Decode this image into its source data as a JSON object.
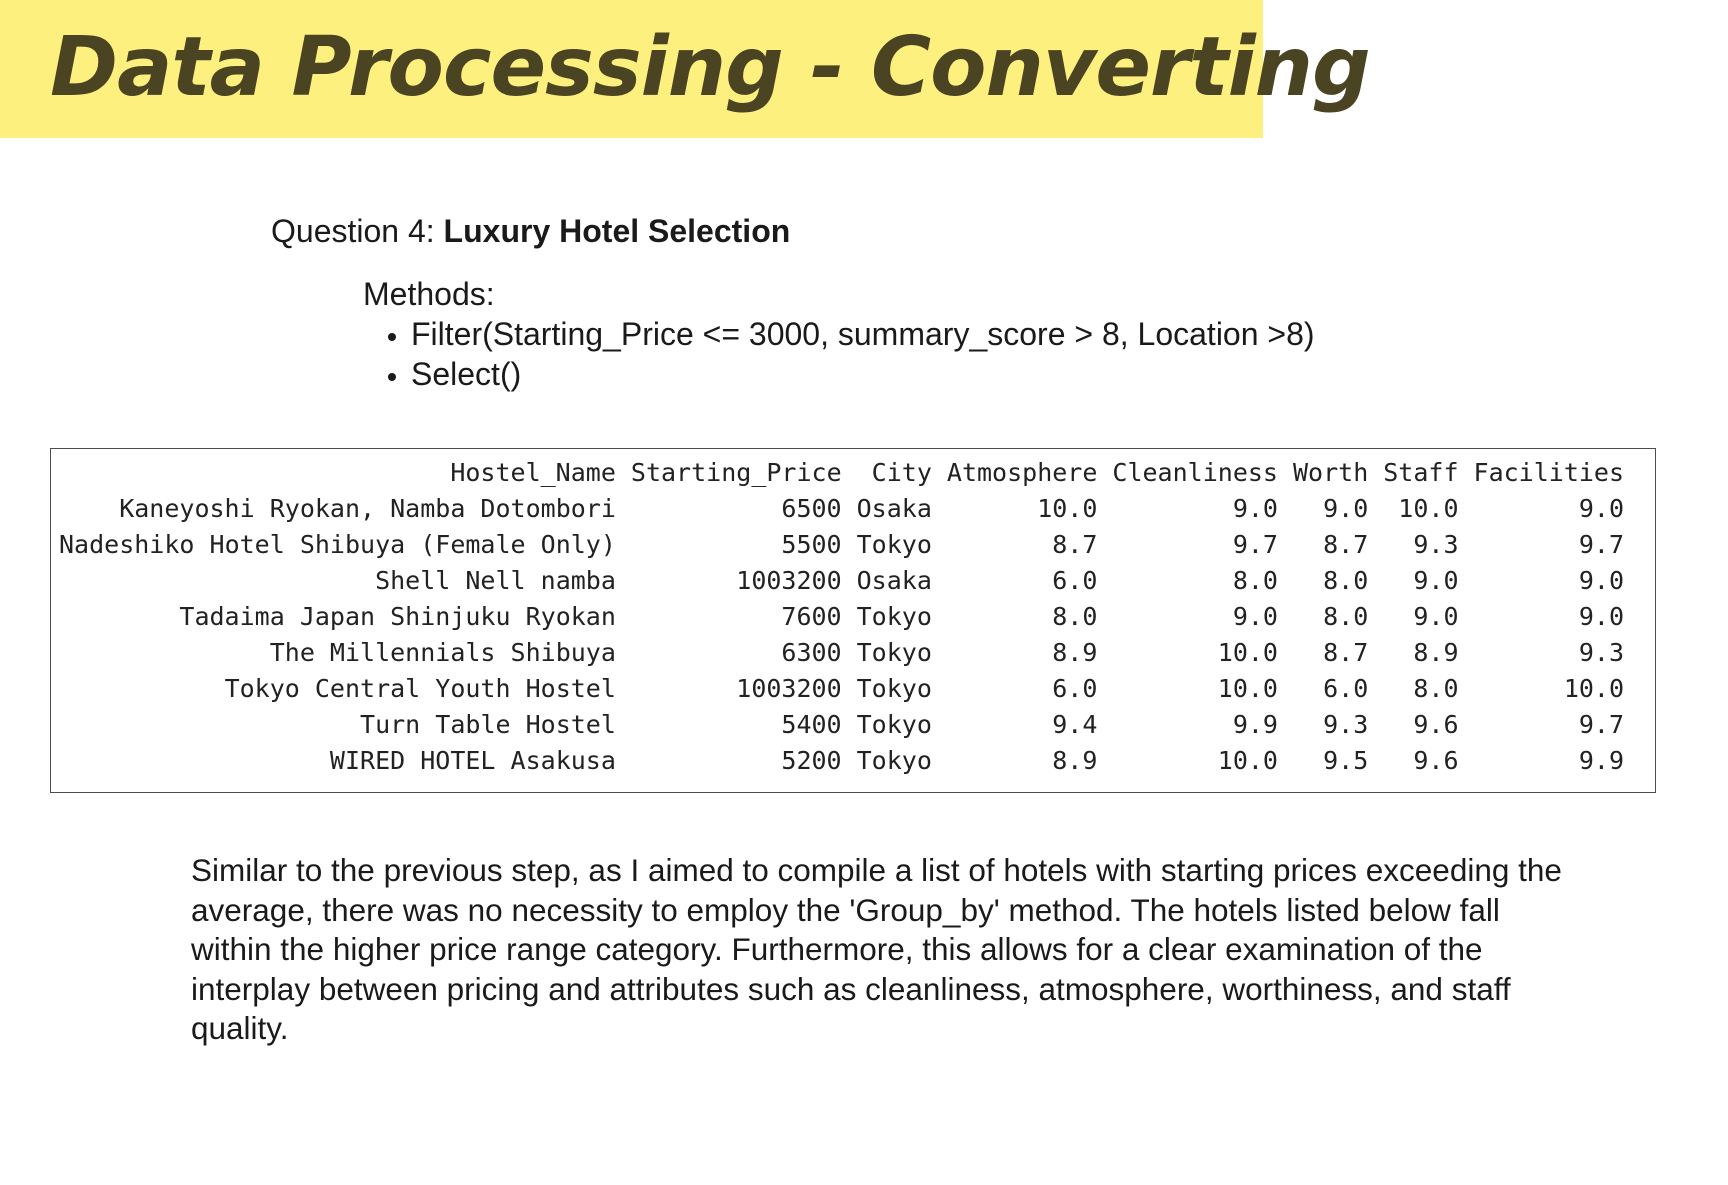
{
  "page": {
    "title": "Data Processing - Converting",
    "accent_color": "#fdf07f",
    "title_color": "#4a4422"
  },
  "question": {
    "prefix": "Question 4: ",
    "name": "Luxury Hotel Selection"
  },
  "methods": {
    "label": "Methods:",
    "items": [
      "Filter(Starting_Price <= 3000, summary_score > 8, Location >8)",
      "Select()"
    ]
  },
  "table": {
    "columns": [
      "Hostel_Name",
      "Starting_Price",
      "City",
      "Atmosphere",
      "Cleanliness",
      "Worth",
      "Staff",
      "Facilities"
    ],
    "rows": [
      [
        "Kaneyoshi Ryokan, Namba Dotombori",
        "6500",
        "Osaka",
        "10.0",
        "9.0",
        "9.0",
        "10.0",
        "9.0"
      ],
      [
        "Nadeshiko Hotel Shibuya (Female Only)",
        "5500",
        "Tokyo",
        "8.7",
        "9.7",
        "8.7",
        "9.3",
        "9.7"
      ],
      [
        "Shell Nell namba",
        "1003200",
        "Osaka",
        "6.0",
        "8.0",
        "8.0",
        "9.0",
        "9.0"
      ],
      [
        "Tadaima Japan Shinjuku Ryokan",
        "7600",
        "Tokyo",
        "8.0",
        "9.0",
        "8.0",
        "9.0",
        "9.0"
      ],
      [
        "The Millennials Shibuya",
        "6300",
        "Tokyo",
        "8.9",
        "10.0",
        "8.7",
        "8.9",
        "9.3"
      ],
      [
        "Tokyo Central Youth Hostel",
        "1003200",
        "Tokyo",
        "6.0",
        "10.0",
        "6.0",
        "8.0",
        "10.0"
      ],
      [
        "Turn Table Hostel",
        "5400",
        "Tokyo",
        "9.4",
        "9.9",
        "9.3",
        "9.6",
        "9.7"
      ],
      [
        "WIRED HOTEL Asakusa",
        "5200",
        "Tokyo",
        "8.9",
        "10.0",
        "9.5",
        "9.6",
        "9.9"
      ]
    ]
  },
  "paragraph": {
    "text": "Similar to the previous step, as I aimed to compile a list of hotels with starting prices exceeding the average, there was no necessity to employ the 'Group_by' method. The hotels listed below fall within the higher price range category. Furthermore, this allows for a clear examination of the interplay between pricing and attributes such as cleanliness, atmosphere, worthiness, and staff quality."
  }
}
